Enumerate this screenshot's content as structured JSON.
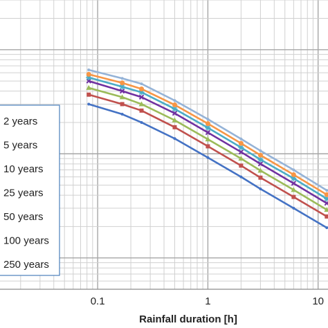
{
  "chart_data": {
    "type": "line",
    "xscale": "log",
    "yscale": "log",
    "grid": true,
    "xlabel": "Rainfall duration [h]",
    "ylabel": "",
    "xticks": [
      {
        "value": 0.1,
        "label": "0.1"
      },
      {
        "value": 1,
        "label": "1"
      },
      {
        "value": 10,
        "label": "10"
      }
    ],
    "xlim": [
      0.013,
      12.3
    ],
    "ylim": [
      0.5,
      300
    ],
    "legend_position": "left",
    "x": [
      0.083,
      0.167,
      0.25,
      0.5,
      1,
      2,
      3,
      6,
      12
    ],
    "series": [
      {
        "name": "2 years",
        "color": "#4472c4",
        "values": [
          30,
          24,
          20,
          14,
          9.2,
          6.0,
          4.6,
          3.0,
          1.95
        ]
      },
      {
        "name": "5 years",
        "color": "#c0504d",
        "values": [
          37,
          30,
          26,
          18,
          11.8,
          7.7,
          5.9,
          3.85,
          2.5
        ]
      },
      {
        "name": "10 years",
        "color": "#9bbb59",
        "values": [
          43,
          35,
          30,
          21,
          13.8,
          9.0,
          6.9,
          4.5,
          2.9
        ]
      },
      {
        "name": "25 years",
        "color": "#7030a0",
        "values": [
          50,
          40,
          35,
          24.5,
          16,
          10.4,
          8.0,
          5.2,
          3.35
        ]
      },
      {
        "name": "50 years",
        "color": "#4bacc6",
        "values": [
          54,
          44,
          39,
          27,
          17.8,
          11.5,
          8.8,
          5.8,
          3.7
        ]
      },
      {
        "name": "100 years",
        "color": "#f79646",
        "values": [
          58,
          48,
          42,
          29.5,
          19.5,
          12.6,
          9.7,
          6.3,
          4.05
        ]
      },
      {
        "name": "250 years",
        "color": "#95b3d7",
        "values": [
          64,
          53,
          47,
          32.5,
          21.5,
          13.9,
          10.7,
          7.0,
          4.45
        ]
      }
    ]
  }
}
